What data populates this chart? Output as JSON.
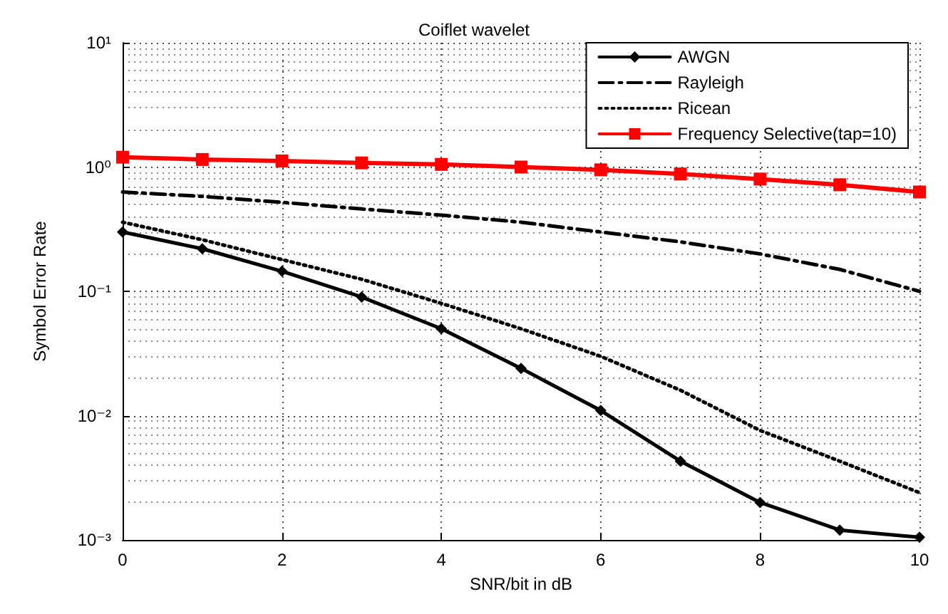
{
  "chart_data": {
    "type": "line",
    "title": "Coiflet wavelet",
    "xlabel": "SNR/bit in dB",
    "ylabel": "Symbol Error Rate",
    "x": [
      0,
      1,
      2,
      3,
      4,
      5,
      6,
      7,
      8,
      9,
      10
    ],
    "series": [
      {
        "name": "AWGN",
        "color": "#000000",
        "marker": "diamond",
        "line_style": "solid",
        "values": [
          0.3,
          0.22,
          0.145,
          0.09,
          0.05,
          0.024,
          0.011,
          0.0043,
          0.002,
          0.0012,
          0.00105
        ]
      },
      {
        "name": "Rayleigh",
        "color": "#000000",
        "marker": "none",
        "line_style": "dashdot",
        "values": [
          0.63,
          0.58,
          0.52,
          0.46,
          0.41,
          0.36,
          0.3,
          0.25,
          0.2,
          0.15,
          0.1
        ]
      },
      {
        "name": "Ricean",
        "color": "#000000",
        "marker": "none",
        "line_style": "dotted",
        "values": [
          0.36,
          0.26,
          0.18,
          0.125,
          0.08,
          0.05,
          0.03,
          0.016,
          0.0076,
          0.0043,
          0.0024
        ]
      },
      {
        "name": "Frequency Selective(tap=10)",
        "color": "#ff0000",
        "marker": "square",
        "line_style": "solid",
        "values": [
          1.2,
          1.15,
          1.12,
          1.08,
          1.05,
          1.0,
          0.95,
          0.88,
          0.8,
          0.72,
          0.63
        ]
      }
    ],
    "xlim": [
      0,
      10
    ],
    "xticks": [
      0,
      2,
      4,
      6,
      8,
      10
    ],
    "ylim": [
      0.001,
      10
    ],
    "yticks": [
      {
        "value": 0.001,
        "label": "10⁻³"
      },
      {
        "value": 0.01,
        "label": "10⁻²"
      },
      {
        "value": 0.1,
        "label": "10⁻¹"
      },
      {
        "value": 1,
        "label": "10⁰"
      },
      {
        "value": 10,
        "label": "10¹"
      }
    ],
    "log": "y",
    "grid": true,
    "legend": "top right"
  }
}
